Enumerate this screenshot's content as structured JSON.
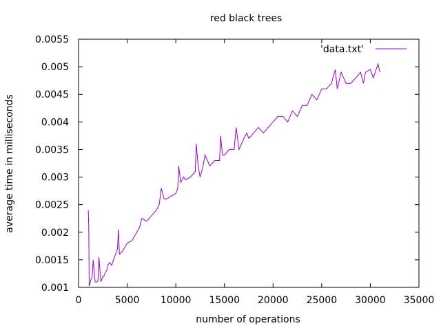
{
  "chart_data": {
    "type": "line",
    "title": "red black trees",
    "xlabel": "number of operations",
    "ylabel": "average time in milliseconds",
    "xlim": [
      0,
      35000
    ],
    "ylim": [
      0.001,
      0.0055
    ],
    "xticks": [
      0,
      5000,
      10000,
      15000,
      20000,
      25000,
      30000,
      35000
    ],
    "xtick_labels": [
      "0",
      "5000",
      "10000",
      "15000",
      "20000",
      "25000",
      "30000",
      "35000"
    ],
    "yticks": [
      0.001,
      0.0015,
      0.002,
      0.0025,
      0.003,
      0.0035,
      0.004,
      0.0045,
      0.005,
      0.0055
    ],
    "ytick_labels": [
      "0.001",
      "0.0015",
      "0.002",
      "0.0025",
      "0.003",
      "0.0035",
      "0.004",
      "0.0045",
      "0.005",
      "0.0055"
    ],
    "grid": false,
    "legend": "top-right",
    "series": [
      {
        "name": "'data.txt'",
        "color": "#9400d3",
        "x": [
          1000,
          1050,
          1100,
          1200,
          1300,
          1400,
          1500,
          1600,
          1700,
          1800,
          1900,
          2000,
          2100,
          2200,
          2300,
          2400,
          2500,
          2600,
          2700,
          2800,
          2900,
          3000,
          3200,
          3400,
          3600,
          3800,
          4000,
          4100,
          4200,
          4500,
          5000,
          5500,
          6000,
          6300,
          6500,
          7000,
          7500,
          8000,
          8300,
          8500,
          8800,
          9000,
          9500,
          10000,
          10200,
          10300,
          10500,
          10800,
          11000,
          11500,
          12000,
          12100,
          12300,
          12500,
          12800,
          13000,
          13500,
          14000,
          14500,
          14600,
          14800,
          15000,
          15500,
          16000,
          16200,
          16500,
          17000,
          17300,
          17500,
          18000,
          18500,
          19000,
          19500,
          20000,
          20500,
          21000,
          21500,
          22000,
          22500,
          23000,
          23500,
          24000,
          24500,
          25000,
          25500,
          26000,
          26400,
          26600,
          27000,
          27500,
          28000,
          28500,
          29000,
          29300,
          29500,
          30000,
          30300,
          30500,
          30800,
          31000
        ],
        "y": [
          0.0024,
          0.0021,
          0.00102,
          0.00108,
          0.00115,
          0.0012,
          0.0015,
          0.0013,
          0.0011,
          0.0011,
          0.0011,
          0.00112,
          0.00155,
          0.0013,
          0.0011,
          0.00115,
          0.0012,
          0.0012,
          0.00125,
          0.00128,
          0.0013,
          0.0014,
          0.00145,
          0.0014,
          0.0015,
          0.0016,
          0.0017,
          0.00205,
          0.0016,
          0.00165,
          0.0018,
          0.00185,
          0.002,
          0.0021,
          0.00225,
          0.0022,
          0.0023,
          0.0024,
          0.0025,
          0.0028,
          0.0026,
          0.0026,
          0.00265,
          0.0027,
          0.0028,
          0.0032,
          0.0029,
          0.003,
          0.00295,
          0.003,
          0.0031,
          0.0036,
          0.0032,
          0.003,
          0.0032,
          0.0034,
          0.0032,
          0.0033,
          0.0033,
          0.00375,
          0.0034,
          0.0034,
          0.0035,
          0.0035,
          0.0039,
          0.0035,
          0.0037,
          0.0038,
          0.0037,
          0.0038,
          0.0039,
          0.0038,
          0.0039,
          0.004,
          0.0041,
          0.0041,
          0.004,
          0.0042,
          0.0041,
          0.0043,
          0.0043,
          0.0045,
          0.0044,
          0.0046,
          0.0046,
          0.0047,
          0.00495,
          0.0046,
          0.0049,
          0.0047,
          0.0047,
          0.0048,
          0.0049,
          0.0047,
          0.0049,
          0.00495,
          0.0048,
          0.0049,
          0.00505,
          0.0049
        ]
      }
    ]
  }
}
